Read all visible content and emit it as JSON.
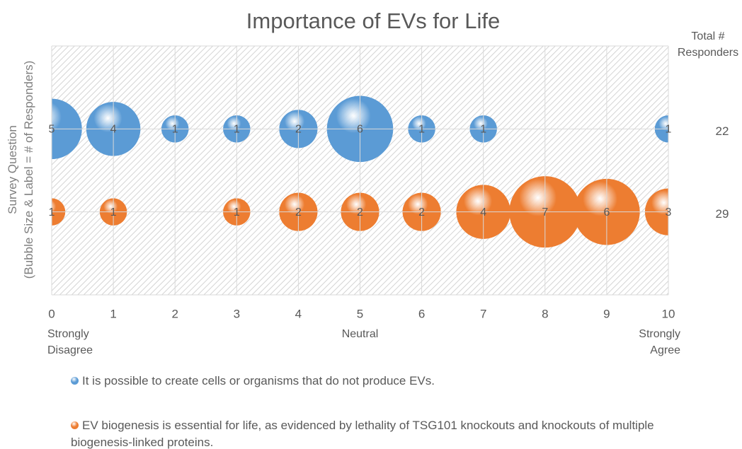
{
  "chart_data": {
    "type": "bubble",
    "title": "Importance of EVs for Life",
    "y_label": [
      "Survey Question",
      "(Bubble Size & Label = # of Responders)"
    ],
    "xlim": [
      0,
      10
    ],
    "xticks": [
      0,
      1,
      2,
      3,
      4,
      5,
      6,
      7,
      8,
      9,
      10
    ],
    "ylim": [
      0,
      3
    ],
    "yticks": [
      0,
      1,
      2,
      3
    ],
    "grid": true,
    "annotations": [
      {
        "text": "Strongly\nDisagree",
        "x": 0,
        "align": "left"
      },
      {
        "text": "Neutral",
        "x": 5,
        "align": "center"
      },
      {
        "text": "Strongly\nAgree",
        "x": 10,
        "align": "right"
      }
    ],
    "totals_label": "Total #\nResponders",
    "series": [
      {
        "name": "It is possible to create cells or organisms that do not produce EVs.",
        "color": "#5b9bd5",
        "x": [
          0,
          1,
          2,
          3,
          4,
          5,
          6,
          7,
          10
        ],
        "y": [
          2,
          2,
          2,
          2,
          2,
          2,
          2,
          2,
          2
        ],
        "sizes": [
          5,
          4,
          1,
          1,
          2,
          6,
          1,
          1,
          1
        ],
        "total": 22
      },
      {
        "name": "EV biogenesis is essential for life, as evidenced by lethality of TSG101 knockouts and knockouts of multiple biogenesis-linked proteins.",
        "color": "#ed7d31",
        "x": [
          0,
          1,
          3,
          4,
          5,
          6,
          7,
          8,
          9,
          10
        ],
        "y": [
          1,
          1,
          1,
          1,
          1,
          1,
          1,
          1,
          1,
          1
        ],
        "sizes": [
          1,
          1,
          1,
          2,
          2,
          2,
          4,
          7,
          6,
          3
        ],
        "total": 29
      }
    ],
    "legend": "bottom"
  }
}
